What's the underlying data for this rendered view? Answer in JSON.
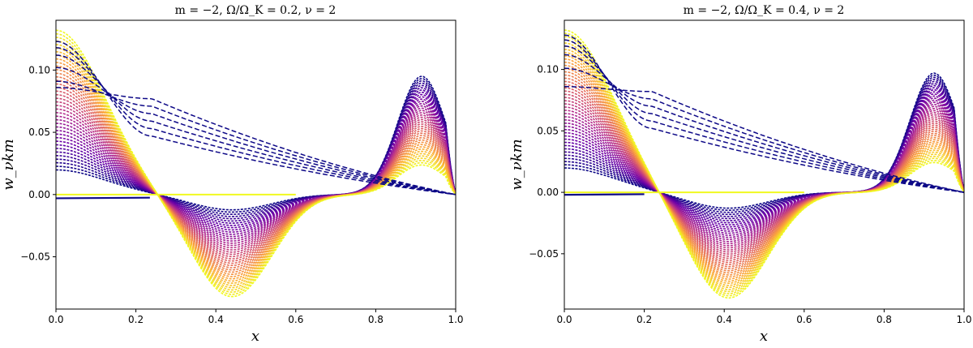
{
  "chart_data": [
    {
      "type": "line",
      "title": "m = −2,  Ω/Ω_K = 0.2,  ν = 2",
      "xlabel": "x",
      "ylabel": "w_νkm",
      "xlim": [
        0.0,
        1.0
      ],
      "ylim": [
        -0.092,
        0.14
      ],
      "x_ticks": [
        "0.0",
        "0.2",
        "0.4",
        "0.6",
        "0.8",
        "1.0"
      ],
      "y_ticks": [
        "−0.05",
        "0.00",
        "0.05",
        "0.10"
      ],
      "grid": false,
      "colormap": [
        "#0d0887",
        "#6a00a8",
        "#b12a90",
        "#e16462",
        "#fca636",
        "#f0f921"
      ],
      "dashed_color": "#0d0887",
      "series_count": 40,
      "series_envelope": {
        "family_peak_at_zero": 0.132,
        "family_min": -0.079,
        "family_min_x": 0.44,
        "family_zero_crossing_x": 0.235,
        "right_peak": 0.095,
        "right_peak_x": 0.915,
        "flat_line_y": -0.003,
        "dashed_start_values": [
          0.086,
          0.091,
          0.102,
          0.112,
          0.118,
          0.123
        ],
        "dashed_knee_x": 0.24,
        "dashed_knee_y": 0.077
      }
    },
    {
      "type": "line",
      "title": "m = −2,  Ω/Ω_K = 0.4,  ν = 2",
      "xlabel": "x",
      "ylabel": "w_νkm",
      "xlim": [
        0.0,
        1.0
      ],
      "ylim": [
        -0.095,
        0.14
      ],
      "x_ticks": [
        "0.0",
        "0.2",
        "0.4",
        "0.6",
        "0.8",
        "1.0"
      ],
      "y_ticks": [
        "−0.05",
        "0.00",
        "0.05",
        "0.10"
      ],
      "grid": false,
      "colormap": [
        "#0d0887",
        "#6a00a8",
        "#b12a90",
        "#e16462",
        "#fca636",
        "#f0f921"
      ],
      "dashed_color": "#0d0887",
      "series_count": 44,
      "series_envelope": {
        "family_peak_at_zero": 0.132,
        "family_min": -0.083,
        "family_min_x": 0.41,
        "family_zero_crossing_x": 0.2,
        "right_peak": 0.097,
        "right_peak_x": 0.925,
        "flat_line_y": -0.002,
        "dashed_start_values": [
          0.086,
          0.101,
          0.112,
          0.119,
          0.124,
          0.128
        ],
        "dashed_knee_x": 0.22,
        "dashed_knee_y": 0.082
      }
    }
  ]
}
